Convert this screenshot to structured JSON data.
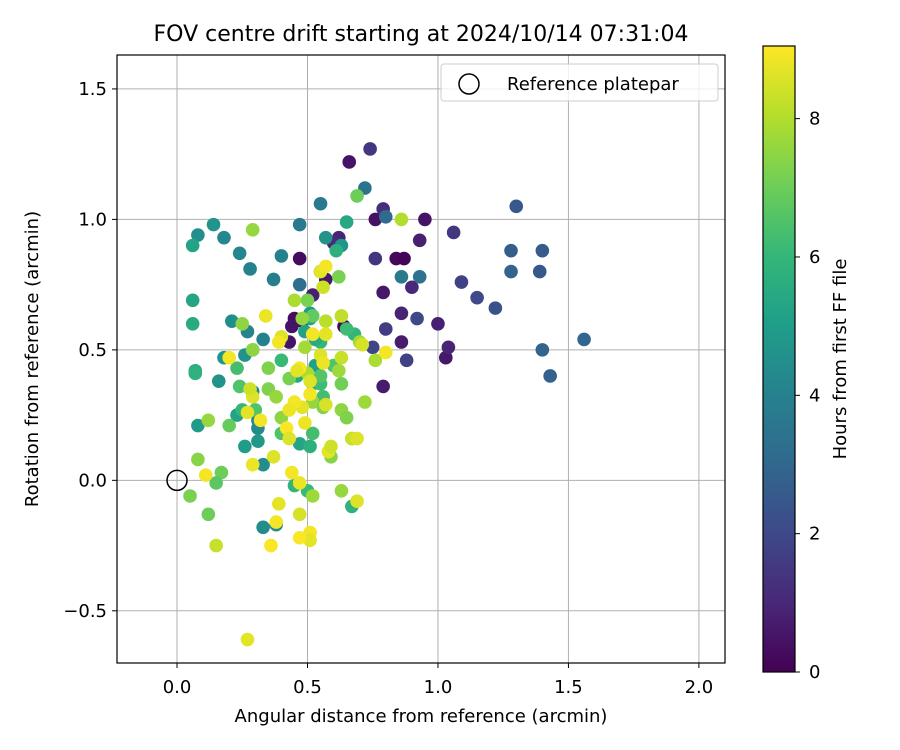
{
  "chart_data": {
    "type": "scatter",
    "title": "FOV centre drift starting at 2024/10/14 07:31:04",
    "xlabel": "Angular distance from reference (arcmin)",
    "ylabel": "Rotation from reference (arcmin)",
    "xlim": [
      -0.23,
      2.1
    ],
    "ylim": [
      -0.7,
      1.63
    ],
    "xticks": [
      0.0,
      0.5,
      1.0,
      1.5,
      2.0
    ],
    "xtick_labels": [
      "0.0",
      "0.5",
      "1.0",
      "1.5",
      "2.0"
    ],
    "yticks": [
      -0.5,
      0.0,
      0.5,
      1.0,
      1.5
    ],
    "ytick_labels": [
      "−0.5",
      "0.0",
      "0.5",
      "1.0",
      "1.5"
    ],
    "grid": true,
    "legend": {
      "position": "top-right",
      "label": "Reference platepar"
    },
    "reference_point": {
      "x": 0.0,
      "y": 0.0
    },
    "colorbar": {
      "label": "Hours from first FF file",
      "range": [
        0,
        9.05
      ],
      "ticks": [
        0,
        2,
        4,
        6,
        8
      ],
      "tick_labels": [
        "0",
        "2",
        "4",
        "6",
        "8"
      ],
      "colormap": "viridis",
      "colors": [
        "#440154",
        "#482878",
        "#3e4989",
        "#31688e",
        "#26828e",
        "#1f9e89",
        "#35b779",
        "#6ece58",
        "#b5de2b",
        "#fde725"
      ]
    },
    "points": [
      {
        "x": 0.66,
        "y": 1.22,
        "h": 0.5
      },
      {
        "x": 0.74,
        "y": 1.27,
        "h": 1.5
      },
      {
        "x": 0.47,
        "y": 0.85,
        "h": 0.3
      },
      {
        "x": 0.84,
        "y": 0.85,
        "h": 0.2
      },
      {
        "x": 0.87,
        "y": 0.85,
        "h": 0.1
      },
      {
        "x": 0.79,
        "y": 0.72,
        "h": 0.6
      },
      {
        "x": 0.57,
        "y": 0.77,
        "h": 0.6
      },
      {
        "x": 0.52,
        "y": 0.71,
        "h": 0.8
      },
      {
        "x": 0.45,
        "y": 0.62,
        "h": 0.3
      },
      {
        "x": 0.48,
        "y": 0.61,
        "h": 0.3
      },
      {
        "x": 0.44,
        "y": 0.59,
        "h": 0.5
      },
      {
        "x": 0.64,
        "y": 0.59,
        "h": 0.2
      },
      {
        "x": 0.43,
        "y": 0.53,
        "h": 0.5
      },
      {
        "x": 0.76,
        "y": 1.0,
        "h": 0.4
      },
      {
        "x": 0.95,
        "y": 1.0,
        "h": 0.5
      },
      {
        "x": 0.93,
        "y": 0.92,
        "h": 0.8
      },
      {
        "x": 0.86,
        "y": 0.64,
        "h": 0.9
      },
      {
        "x": 1.0,
        "y": 0.6,
        "h": 0.8
      },
      {
        "x": 1.03,
        "y": 0.47,
        "h": 0.6
      },
      {
        "x": 1.04,
        "y": 0.51,
        "h": 0.9
      },
      {
        "x": 0.79,
        "y": 0.36,
        "h": 0.7
      },
      {
        "x": 0.86,
        "y": 0.53,
        "h": 0.7
      },
      {
        "x": 0.62,
        "y": 0.93,
        "h": 0.9
      },
      {
        "x": 0.6,
        "y": 0.91,
        "h": 1.1
      },
      {
        "x": 0.9,
        "y": 0.74,
        "h": 1.0
      },
      {
        "x": 0.79,
        "y": 1.04,
        "h": 1.2
      },
      {
        "x": 1.06,
        "y": 0.95,
        "h": 1.5
      },
      {
        "x": 1.09,
        "y": 0.76,
        "h": 1.8
      },
      {
        "x": 1.15,
        "y": 0.7,
        "h": 2.0
      },
      {
        "x": 1.22,
        "y": 0.66,
        "h": 2.3
      },
      {
        "x": 0.76,
        "y": 0.85,
        "h": 1.4
      },
      {
        "x": 0.8,
        "y": 0.58,
        "h": 1.6
      },
      {
        "x": 0.92,
        "y": 0.62,
        "h": 2.0
      },
      {
        "x": 0.88,
        "y": 0.46,
        "h": 1.8
      },
      {
        "x": 0.75,
        "y": 0.51,
        "h": 1.9
      },
      {
        "x": 0.55,
        "y": 0.8,
        "h": 2.2
      },
      {
        "x": 1.3,
        "y": 1.05,
        "h": 2.5
      },
      {
        "x": 1.28,
        "y": 0.88,
        "h": 2.7
      },
      {
        "x": 1.4,
        "y": 0.88,
        "h": 2.6
      },
      {
        "x": 1.28,
        "y": 0.8,
        "h": 2.9
      },
      {
        "x": 1.39,
        "y": 0.8,
        "h": 2.5
      },
      {
        "x": 1.4,
        "y": 0.5,
        "h": 2.9
      },
      {
        "x": 1.43,
        "y": 0.4,
        "h": 2.8
      },
      {
        "x": 1.56,
        "y": 0.54,
        "h": 3.0
      },
      {
        "x": 0.72,
        "y": 1.12,
        "h": 3.5
      },
      {
        "x": 0.8,
        "y": 1.01,
        "h": 3.1
      },
      {
        "x": 0.55,
        "y": 1.06,
        "h": 3.7
      },
      {
        "x": 0.47,
        "y": 0.98,
        "h": 3.7
      },
      {
        "x": 0.86,
        "y": 0.78,
        "h": 3.7
      },
      {
        "x": 0.93,
        "y": 0.78,
        "h": 3.4
      },
      {
        "x": 0.47,
        "y": 0.75,
        "h": 3.3
      },
      {
        "x": 0.37,
        "y": 0.77,
        "h": 3.9
      },
      {
        "x": 0.4,
        "y": 0.86,
        "h": 4.0
      },
      {
        "x": 0.28,
        "y": 0.81,
        "h": 4.0
      },
      {
        "x": 0.24,
        "y": 0.87,
        "h": 4.2
      },
      {
        "x": 0.57,
        "y": 0.93,
        "h": 4.6
      },
      {
        "x": 0.63,
        "y": 0.9,
        "h": 4.7
      },
      {
        "x": 0.14,
        "y": 0.98,
        "h": 4.7
      },
      {
        "x": 0.18,
        "y": 0.93,
        "h": 4.2
      },
      {
        "x": 0.08,
        "y": 0.94,
        "h": 4.5
      },
      {
        "x": 0.06,
        "y": 0.9,
        "h": 5.2
      },
      {
        "x": 0.06,
        "y": 0.69,
        "h": 5.3
      },
      {
        "x": 0.06,
        "y": 0.6,
        "h": 5.5
      },
      {
        "x": 0.07,
        "y": 0.42,
        "h": 5.6
      },
      {
        "x": 0.07,
        "y": 0.41,
        "h": 5.8
      },
      {
        "x": 0.08,
        "y": 0.21,
        "h": 4.9
      },
      {
        "x": 0.18,
        "y": 0.47,
        "h": 4.7
      },
      {
        "x": 0.16,
        "y": 0.38,
        "h": 4.6
      },
      {
        "x": 0.21,
        "y": 0.61,
        "h": 4.4
      },
      {
        "x": 0.27,
        "y": 0.57,
        "h": 4.1
      },
      {
        "x": 0.33,
        "y": 0.54,
        "h": 4.0
      },
      {
        "x": 0.26,
        "y": 0.48,
        "h": 4.6
      },
      {
        "x": 0.29,
        "y": 0.34,
        "h": 4.3
      },
      {
        "x": 0.31,
        "y": 0.23,
        "h": 4.1
      },
      {
        "x": 0.31,
        "y": 0.2,
        "h": 4.3
      },
      {
        "x": 0.31,
        "y": 0.15,
        "h": 4.8
      },
      {
        "x": 0.26,
        "y": 0.13,
        "h": 5.0
      },
      {
        "x": 0.33,
        "y": 0.06,
        "h": 4.4
      },
      {
        "x": 0.33,
        "y": -0.18,
        "h": 4.4
      },
      {
        "x": 0.38,
        "y": -0.17,
        "h": 4.3
      },
      {
        "x": 0.23,
        "y": 0.25,
        "h": 5.2
      },
      {
        "x": 0.29,
        "y": 0.5,
        "h": 5.6
      },
      {
        "x": 0.51,
        "y": 0.64,
        "h": 4.9
      },
      {
        "x": 0.51,
        "y": 0.62,
        "h": 5.2
      },
      {
        "x": 0.49,
        "y": 0.57,
        "h": 5.2
      },
      {
        "x": 0.53,
        "y": 0.44,
        "h": 5.1
      },
      {
        "x": 0.52,
        "y": 0.37,
        "h": 5.3
      },
      {
        "x": 0.46,
        "y": 0.4,
        "h": 5.4
      },
      {
        "x": 0.47,
        "y": 0.14,
        "h": 5.3
      },
      {
        "x": 0.51,
        "y": 0.13,
        "h": 5.7
      },
      {
        "x": 0.52,
        "y": 0.18,
        "h": 6.3
      },
      {
        "x": 0.45,
        "y": -0.02,
        "h": 5.9
      },
      {
        "x": 0.5,
        "y": -0.04,
        "h": 6.1
      },
      {
        "x": 0.55,
        "y": 0.53,
        "h": 6.0
      },
      {
        "x": 0.56,
        "y": 0.32,
        "h": 6.3
      },
      {
        "x": 0.55,
        "y": 0.37,
        "h": 6.2
      },
      {
        "x": 0.65,
        "y": 0.99,
        "h": 5.4
      },
      {
        "x": 0.61,
        "y": 0.88,
        "h": 5.7
      },
      {
        "x": 0.68,
        "y": 0.56,
        "h": 5.9
      },
      {
        "x": 0.67,
        "y": -0.1,
        "h": 5.8
      },
      {
        "x": 0.65,
        "y": 0.58,
        "h": 6.2
      },
      {
        "x": 0.53,
        "y": 0.54,
        "h": 5.5
      },
      {
        "x": 0.4,
        "y": 0.46,
        "h": 6.1
      },
      {
        "x": 0.4,
        "y": 0.18,
        "h": 6.5
      },
      {
        "x": 0.52,
        "y": 0.63,
        "h": 6.8
      },
      {
        "x": 0.55,
        "y": 0.4,
        "h": 6.6
      },
      {
        "x": 0.6,
        "y": 0.44,
        "h": 6.5
      },
      {
        "x": 0.24,
        "y": 0.36,
        "h": 6.5
      },
      {
        "x": 0.25,
        "y": 0.27,
        "h": 6.0
      },
      {
        "x": 0.3,
        "y": 0.27,
        "h": 6.5
      },
      {
        "x": 0.23,
        "y": 0.43,
        "h": 6.3
      },
      {
        "x": 0.2,
        "y": 0.21,
        "h": 6.9
      },
      {
        "x": 0.17,
        "y": 0.03,
        "h": 7.0
      },
      {
        "x": 0.15,
        "y": -0.01,
        "h": 6.7
      },
      {
        "x": 0.12,
        "y": -0.13,
        "h": 7.0
      },
      {
        "x": 0.05,
        "y": -0.06,
        "h": 7.2
      },
      {
        "x": 0.08,
        "y": 0.08,
        "h": 7.4
      },
      {
        "x": 0.12,
        "y": 0.23,
        "h": 7.6
      },
      {
        "x": 0.25,
        "y": 0.6,
        "h": 7.5
      },
      {
        "x": 0.29,
        "y": 0.96,
        "h": 7.6
      },
      {
        "x": 0.29,
        "y": 0.5,
        "h": 7.5
      },
      {
        "x": 0.35,
        "y": 0.35,
        "h": 7.3
      },
      {
        "x": 0.35,
        "y": 0.43,
        "h": 7.3
      },
      {
        "x": 0.38,
        "y": 0.32,
        "h": 7.6
      },
      {
        "x": 0.43,
        "y": 0.39,
        "h": 7.2
      },
      {
        "x": 0.4,
        "y": 0.24,
        "h": 7.5
      },
      {
        "x": 0.48,
        "y": 0.62,
        "h": 7.6
      },
      {
        "x": 0.5,
        "y": 0.69,
        "h": 7.2
      },
      {
        "x": 0.45,
        "y": 0.69,
        "h": 7.9
      },
      {
        "x": 0.49,
        "y": 0.51,
        "h": 7.8
      },
      {
        "x": 0.5,
        "y": 0.41,
        "h": 7.9
      },
      {
        "x": 0.52,
        "y": 0.3,
        "h": 7.6
      },
      {
        "x": 0.56,
        "y": 0.28,
        "h": 7.3
      },
      {
        "x": 0.59,
        "y": 0.09,
        "h": 7.4
      },
      {
        "x": 0.62,
        "y": 0.42,
        "h": 7.7
      },
      {
        "x": 0.63,
        "y": 0.27,
        "h": 7.5
      },
      {
        "x": 0.63,
        "y": 0.37,
        "h": 7.1
      },
      {
        "x": 0.65,
        "y": 0.24,
        "h": 7.3
      },
      {
        "x": 0.67,
        "y": 0.16,
        "h": 7.6
      },
      {
        "x": 0.72,
        "y": 0.3,
        "h": 7.7
      },
      {
        "x": 0.69,
        "y": 1.09,
        "h": 7.0
      },
      {
        "x": 0.62,
        "y": 0.78,
        "h": 7.2
      },
      {
        "x": 0.63,
        "y": -0.04,
        "h": 7.6
      },
      {
        "x": 0.52,
        "y": -0.06,
        "h": 7.7
      },
      {
        "x": 0.86,
        "y": 1.0,
        "h": 8.0
      },
      {
        "x": 0.76,
        "y": 0.46,
        "h": 7.9
      },
      {
        "x": 0.7,
        "y": 0.53,
        "h": 7.8
      },
      {
        "x": 0.57,
        "y": 0.61,
        "h": 8.1
      },
      {
        "x": 0.63,
        "y": 0.63,
        "h": 8.2
      },
      {
        "x": 0.56,
        "y": 0.74,
        "h": 8.4
      },
      {
        "x": 0.55,
        "y": 0.8,
        "h": 8.7
      },
      {
        "x": 0.57,
        "y": 0.82,
        "h": 8.9
      },
      {
        "x": 0.52,
        "y": 0.56,
        "h": 8.9
      },
      {
        "x": 0.57,
        "y": 0.56,
        "h": 8.7
      },
      {
        "x": 0.63,
        "y": 0.47,
        "h": 8.3
      },
      {
        "x": 0.71,
        "y": 0.52,
        "h": 8.5
      },
      {
        "x": 0.8,
        "y": 0.49,
        "h": 8.9
      },
      {
        "x": 0.55,
        "y": 0.48,
        "h": 8.6
      },
      {
        "x": 0.56,
        "y": 0.45,
        "h": 8.8
      },
      {
        "x": 0.47,
        "y": 0.43,
        "h": 9.0
      },
      {
        "x": 0.46,
        "y": 0.42,
        "h": 8.7
      },
      {
        "x": 0.51,
        "y": 0.38,
        "h": 8.6
      },
      {
        "x": 0.51,
        "y": 0.33,
        "h": 8.9
      },
      {
        "x": 0.57,
        "y": 0.29,
        "h": 8.5
      },
      {
        "x": 0.48,
        "y": 0.28,
        "h": 8.7
      },
      {
        "x": 0.45,
        "y": 0.3,
        "h": 8.9
      },
      {
        "x": 0.43,
        "y": 0.27,
        "h": 8.8
      },
      {
        "x": 0.42,
        "y": 0.2,
        "h": 9.0
      },
      {
        "x": 0.43,
        "y": 0.16,
        "h": 8.6
      },
      {
        "x": 0.49,
        "y": 0.22,
        "h": 8.8
      },
      {
        "x": 0.58,
        "y": 0.11,
        "h": 8.7
      },
      {
        "x": 0.59,
        "y": 0.13,
        "h": 8.4
      },
      {
        "x": 0.67,
        "y": 0.16,
        "h": 8.3
      },
      {
        "x": 0.69,
        "y": 0.16,
        "h": 8.6
      },
      {
        "x": 0.69,
        "y": -0.08,
        "h": 8.6
      },
      {
        "x": 0.44,
        "y": 0.03,
        "h": 8.9
      },
      {
        "x": 0.47,
        "y": -0.01,
        "h": 8.8
      },
      {
        "x": 0.39,
        "y": -0.09,
        "h": 8.7
      },
      {
        "x": 0.38,
        "y": -0.16,
        "h": 8.9
      },
      {
        "x": 0.36,
        "y": -0.25,
        "h": 9.0
      },
      {
        "x": 0.47,
        "y": -0.13,
        "h": 8.5
      },
      {
        "x": 0.51,
        "y": -0.2,
        "h": 8.9
      },
      {
        "x": 0.51,
        "y": -0.23,
        "h": 8.7
      },
      {
        "x": 0.47,
        "y": -0.22,
        "h": 9.0
      },
      {
        "x": 0.37,
        "y": 0.09,
        "h": 8.6
      },
      {
        "x": 0.29,
        "y": 0.06,
        "h": 8.8
      },
      {
        "x": 0.32,
        "y": 0.23,
        "h": 8.9
      },
      {
        "x": 0.29,
        "y": 0.32,
        "h": 8.6
      },
      {
        "x": 0.28,
        "y": 0.35,
        "h": 8.4
      },
      {
        "x": 0.27,
        "y": 0.26,
        "h": 8.7
      },
      {
        "x": 0.2,
        "y": 0.47,
        "h": 8.9
      },
      {
        "x": 0.34,
        "y": 0.63,
        "h": 8.8
      },
      {
        "x": 0.4,
        "y": 0.55,
        "h": 8.6
      },
      {
        "x": 0.39,
        "y": 0.53,
        "h": 8.9
      },
      {
        "x": 0.11,
        "y": 0.02,
        "h": 8.9
      },
      {
        "x": 0.15,
        "y": -0.25,
        "h": 8.3
      },
      {
        "x": 0.27,
        "y": -0.61,
        "h": 8.7
      }
    ]
  }
}
